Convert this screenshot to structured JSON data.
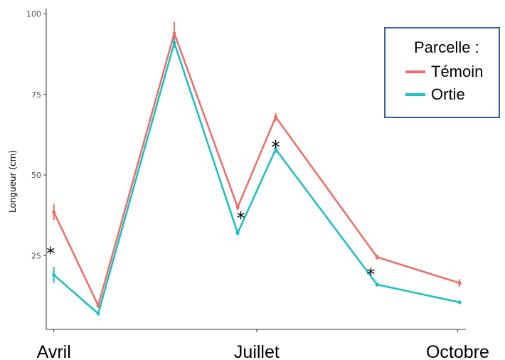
{
  "chart_data": {
    "type": "line",
    "title": "",
    "xlabel": "",
    "ylabel": "Longueur  (cm)",
    "ylim": [
      0,
      100
    ],
    "yticks": [
      25,
      50,
      75,
      100
    ],
    "month_labels": [
      {
        "label": "Avril",
        "x": 0
      },
      {
        "label": "Juillet",
        "x": 3.2
      },
      {
        "label": "Octobre",
        "x": 6.37
      }
    ],
    "x": [
      0,
      0.7,
      1.9,
      2.9,
      3.5,
      5.1,
      6.4
    ],
    "series": [
      {
        "name": "Témoin",
        "color": "#e8716b",
        "values": [
          38.5,
          9.5,
          94,
          40,
          68,
          24.5,
          16.5
        ],
        "errors": [
          2.5,
          0.8,
          3.5,
          1.0,
          1.2,
          0.8,
          1.2
        ]
      },
      {
        "name": "Ortie",
        "color": "#1fbfc6",
        "values": [
          19,
          7,
          91,
          32,
          58,
          16,
          10.5
        ],
        "errors": [
          2.5,
          0.6,
          1.5,
          0.8,
          1.2,
          0.6,
          0.6
        ]
      }
    ],
    "annotations": [
      {
        "text": "*",
        "x": -0.05,
        "y": 26
      },
      {
        "text": "*",
        "x": 2.95,
        "y": 37
      },
      {
        "text": "*",
        "x": 3.5,
        "y": 59
      },
      {
        "text": "*",
        "x": 5.0,
        "y": 19.5
      }
    ],
    "legend": {
      "title": "Parcelle :",
      "placement": "top-right"
    },
    "grid": false
  }
}
